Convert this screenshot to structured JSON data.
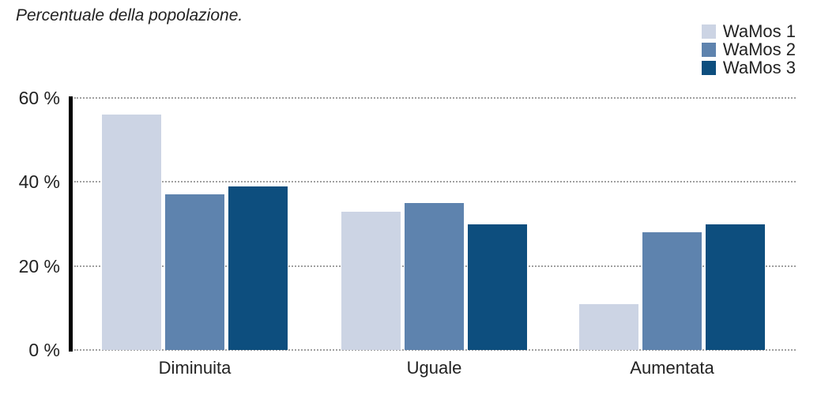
{
  "chart_data": {
    "type": "bar",
    "title": "Percentuale della popolazione.",
    "categories": [
      "Diminuita",
      "Uguale",
      "Aumentata"
    ],
    "series": [
      {
        "name": "WaMos 1",
        "color": "#ccd4e4",
        "values": [
          56,
          33,
          11
        ]
      },
      {
        "name": "WaMos 2",
        "color": "#5e83ae",
        "values": [
          37,
          35,
          28
        ]
      },
      {
        "name": "WaMos 3",
        "color": "#0d4e7e",
        "values": [
          39,
          30,
          30
        ]
      }
    ],
    "y_axis": {
      "ylim": [
        0,
        60
      ],
      "ticks": [
        {
          "value": 60,
          "label": "60 %"
        },
        {
          "value": 40,
          "label": "40 %"
        },
        {
          "value": 20,
          "label": "20 %"
        },
        {
          "value": 0,
          "label": "0 %"
        }
      ]
    },
    "grid": "horizontal-dotted",
    "legend_position": "top-right",
    "colors": {
      "axis": "#000000",
      "grid": "#a0a0a0",
      "text": "#222222",
      "background": "#ffffff"
    }
  }
}
